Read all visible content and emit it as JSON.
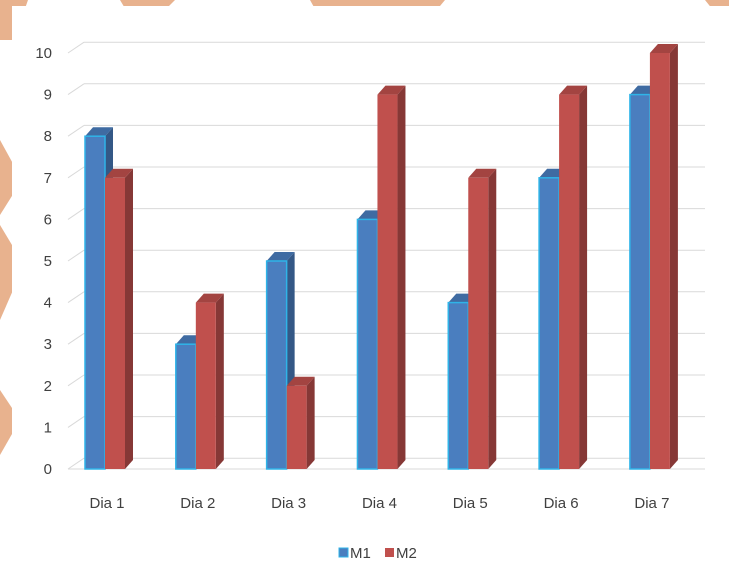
{
  "chart_data": {
    "type": "bar",
    "categories": [
      "Dia 1",
      "Dia 2",
      "Dia 3",
      "Dia 4",
      "Dia 5",
      "Dia 6",
      "Dia 7"
    ],
    "series": [
      {
        "name": "M1",
        "values": [
          8,
          3,
          5,
          6,
          4,
          7,
          9
        ],
        "color": "#4A7EBF"
      },
      {
        "name": "M2",
        "values": [
          7,
          4,
          2,
          9,
          7,
          9,
          10
        ],
        "color": "#C0504D"
      }
    ],
    "yticks": [
      "0",
      "1",
      "2",
      "3",
      "4",
      "5",
      "6",
      "7",
      "8",
      "9",
      "10"
    ],
    "ylim": [
      0,
      10
    ],
    "grid": true,
    "legend_position": "bottom",
    "style": "3d-clustered-column"
  },
  "colors": {
    "background": "#ffffff",
    "decorative_shape": "#E8B28E",
    "gridline": "#D9D9D9"
  }
}
